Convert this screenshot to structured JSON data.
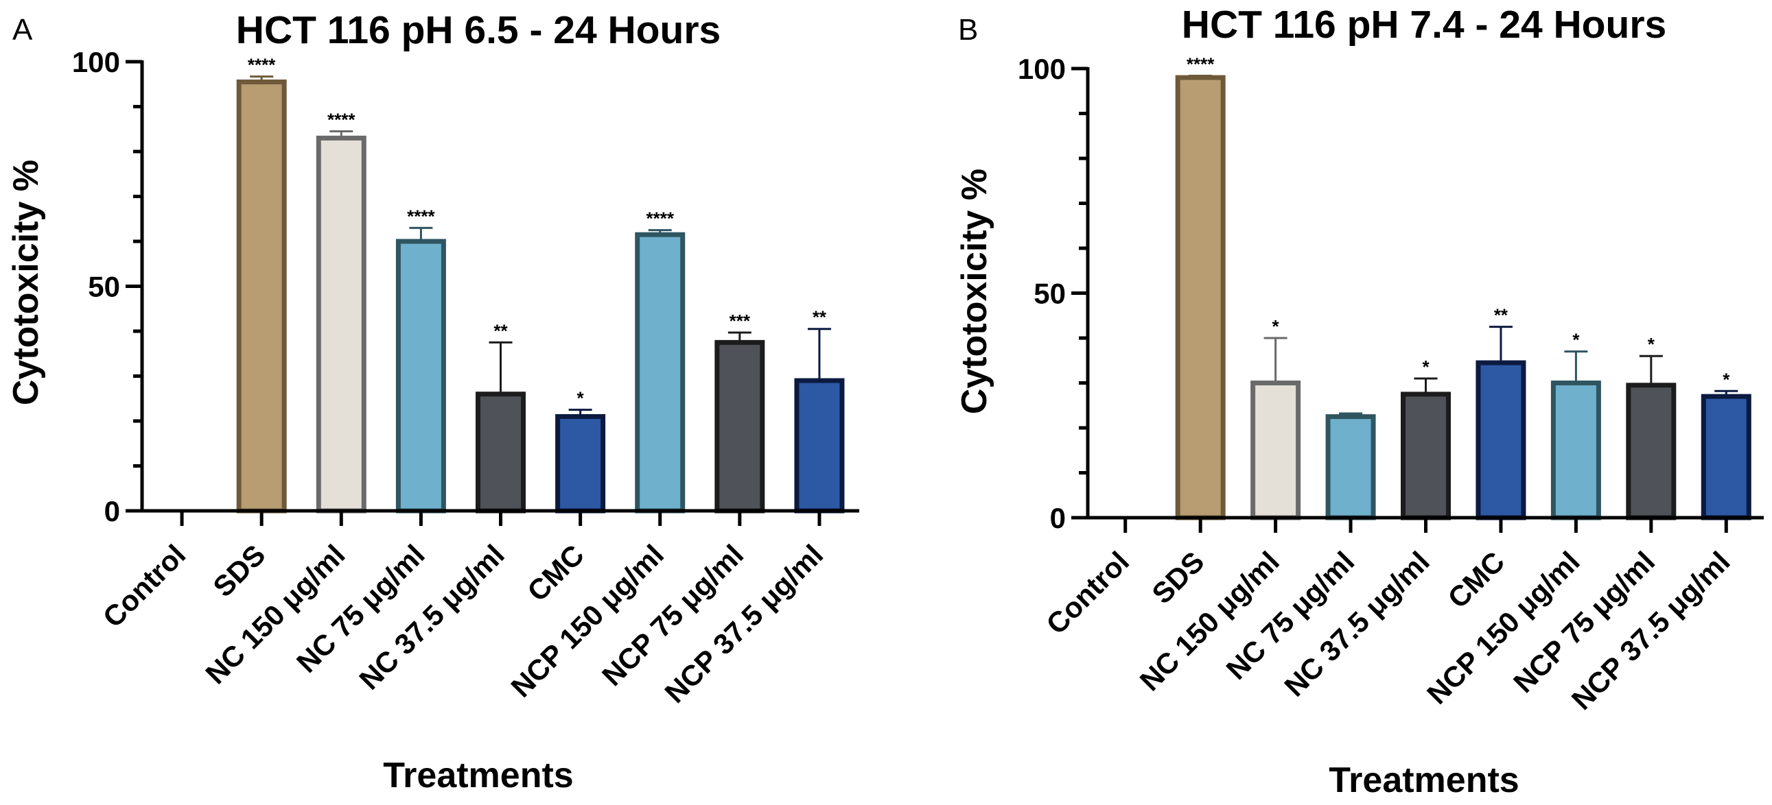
{
  "colors": {
    "Control": {
      "fill": "#ffffff",
      "stroke": "#ffffff"
    },
    "SDS": {
      "fill": "#b89c72",
      "stroke": "#6e5a3a"
    },
    "NC 150 μg/ml": {
      "fill": "#e4e0d7",
      "stroke": "#6a6a6a"
    },
    "NC 75 μg/ml": {
      "fill": "#6fb0cc",
      "stroke": "#2f5560"
    },
    "NC 37.5 μg/ml": {
      "fill": "#4f5258",
      "stroke": "#1c1c1c"
    },
    "CMC": {
      "fill": "#2d58a4",
      "stroke": "#0c1a40"
    },
    "NCP 150 μg/ml": {
      "fill": "#6fb0cc",
      "stroke": "#2f5560"
    },
    "NCP 75 μg/ml": {
      "fill": "#4f5258",
      "stroke": "#1c1c1c"
    },
    "NCP 37.5 μg/ml": {
      "fill": "#2d58a4",
      "stroke": "#0c1a40"
    }
  },
  "chart_data": [
    {
      "panel": "A",
      "type": "bar",
      "title": "HCT 116 pH 6.5 - 24 Hours",
      "xlabel": "Treatments",
      "ylabel": "Cytotoxicity %",
      "ylim": [
        0,
        100
      ],
      "yticks": [
        0,
        50,
        100
      ],
      "categories": [
        "Control",
        "SDS",
        "NC 150 μg/ml",
        "NC 75 μg/ml",
        "NC 37.5 μg/ml",
        "CMC",
        "NCP 150 μg/ml",
        "NCP 75 μg/ml",
        "NCP 37.5 μg/ml"
      ],
      "values": [
        0,
        95.5,
        83,
        60,
        26,
        21,
        61.5,
        37.5,
        29
      ],
      "errors": [
        0,
        1.2,
        1.5,
        3,
        11.5,
        1.5,
        1,
        2.2,
        11.5
      ],
      "significance": [
        "",
        "****",
        "****",
        "****",
        "**",
        "*",
        "****",
        "***",
        "**"
      ]
    },
    {
      "panel": "B",
      "type": "bar",
      "title": "HCT 116 pH 7.4 - 24 Hours",
      "xlabel": "Treatments",
      "ylabel": "Cytotoxicity %",
      "ylim": [
        0,
        100
      ],
      "yticks": [
        0,
        50,
        100
      ],
      "categories": [
        "Control",
        "SDS",
        "NC 150 μg/ml",
        "NC 75 μg/ml",
        "NC 37.5 μg/ml",
        "CMC",
        "NCP 150 μg/ml",
        "NCP 75 μg/ml",
        "NCP 37.5 μg/ml"
      ],
      "values": [
        0,
        98,
        30,
        22.5,
        27.5,
        34.5,
        30,
        29.5,
        27
      ],
      "errors": [
        0,
        0.4,
        10,
        0.7,
        3.5,
        8,
        7,
        6.5,
        1.2
      ],
      "significance": [
        "",
        "****",
        "*",
        "",
        "*",
        "**",
        "*",
        "*",
        "*"
      ]
    }
  ]
}
